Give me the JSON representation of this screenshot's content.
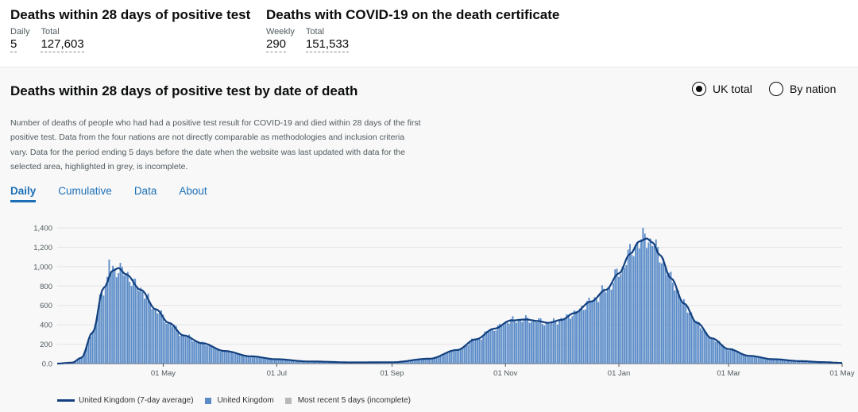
{
  "headline": {
    "left": {
      "title": "Deaths within 28 days of positive test",
      "metrics": [
        {
          "label": "Daily",
          "value": "5"
        },
        {
          "label": "Total",
          "value": "127,603"
        }
      ]
    },
    "right": {
      "title": "Deaths with COVID-19 on the death certificate",
      "metrics": [
        {
          "label": "Weekly",
          "value": "290"
        },
        {
          "label": "Total",
          "value": "151,533"
        }
      ]
    }
  },
  "card": {
    "title": "Deaths within 28 days of positive test by date of death",
    "radios": [
      {
        "label": "UK total",
        "selected": true
      },
      {
        "label": "By nation",
        "selected": false
      }
    ],
    "description": "Number of deaths of people who had had a positive test result for COVID-19 and died within 28 days of the first positive test. Data from the four nations are not directly comparable as methodologies and inclusion criteria vary. Data for the period ending 5 days before the date when the website was last updated with data for the selected area, highlighted in grey, is incomplete.",
    "tabs": [
      {
        "label": "Daily",
        "active": true
      },
      {
        "label": "Cumulative",
        "active": false
      },
      {
        "label": "Data",
        "active": false
      },
      {
        "label": "About",
        "active": false
      }
    ]
  },
  "legend": {
    "line": "United Kingdom (7-day average)",
    "bars": "United Kingdom",
    "incomplete": "Most recent 5 days (incomplete)"
  },
  "colors": {
    "bar": "#5b8cc8",
    "line": "#12407f",
    "incomplete": "#b8b8b8",
    "accent": "#1d70b8"
  },
  "chart_data": {
    "type": "bar",
    "title": "Deaths within 28 days of positive test by date of death",
    "x_tick_labels": [
      "01 May",
      "01 Jul",
      "01 Sep",
      "01 Nov",
      "01 Jan",
      "01 Mar",
      "01 May"
    ],
    "x_tick_days": [
      57,
      118,
      180,
      241,
      302,
      361,
      422
    ],
    "x_range_days": [
      0,
      422
    ],
    "y_ticks": [
      0,
      200,
      400,
      600,
      800,
      1000,
      1200,
      1400
    ],
    "y_tick_labels": [
      "0.0",
      "200",
      "400",
      "600",
      "800",
      "1,000",
      "1,200",
      "1,400"
    ],
    "ylim": [
      0,
      1450
    ],
    "grid": true,
    "series": [
      {
        "name": "United Kingdom",
        "kind": "bar"
      },
      {
        "name": "United Kingdom (7-day average)",
        "kind": "line"
      }
    ],
    "key_points": [
      {
        "day": 0,
        "value": 0
      },
      {
        "day": 8,
        "value": 10
      },
      {
        "day": 13,
        "value": 60
      },
      {
        "day": 19,
        "value": 320
      },
      {
        "day": 25,
        "value": 780
      },
      {
        "day": 30,
        "value": 960
      },
      {
        "day": 33,
        "value": 985
      },
      {
        "day": 37,
        "value": 920
      },
      {
        "day": 45,
        "value": 760
      },
      {
        "day": 53,
        "value": 560
      },
      {
        "day": 60,
        "value": 420
      },
      {
        "day": 68,
        "value": 290
      },
      {
        "day": 78,
        "value": 210
      },
      {
        "day": 90,
        "value": 130
      },
      {
        "day": 104,
        "value": 75
      },
      {
        "day": 118,
        "value": 45
      },
      {
        "day": 135,
        "value": 22
      },
      {
        "day": 160,
        "value": 12
      },
      {
        "day": 180,
        "value": 14
      },
      {
        "day": 200,
        "value": 50
      },
      {
        "day": 215,
        "value": 140
      },
      {
        "day": 225,
        "value": 250
      },
      {
        "day": 235,
        "value": 360
      },
      {
        "day": 244,
        "value": 445
      },
      {
        "day": 252,
        "value": 455
      },
      {
        "day": 258,
        "value": 440
      },
      {
        "day": 264,
        "value": 420
      },
      {
        "day": 271,
        "value": 450
      },
      {
        "day": 278,
        "value": 520
      },
      {
        "day": 287,
        "value": 640
      },
      {
        "day": 295,
        "value": 760
      },
      {
        "day": 302,
        "value": 930
      },
      {
        "day": 308,
        "value": 1130
      },
      {
        "day": 313,
        "value": 1260
      },
      {
        "day": 317,
        "value": 1290
      },
      {
        "day": 320,
        "value": 1250
      },
      {
        "day": 324,
        "value": 1120
      },
      {
        "day": 330,
        "value": 880
      },
      {
        "day": 337,
        "value": 620
      },
      {
        "day": 344,
        "value": 420
      },
      {
        "day": 352,
        "value": 260
      },
      {
        "day": 361,
        "value": 150
      },
      {
        "day": 372,
        "value": 80
      },
      {
        "day": 385,
        "value": 45
      },
      {
        "day": 400,
        "value": 25
      },
      {
        "day": 412,
        "value": 15
      },
      {
        "day": 422,
        "value": 7
      }
    ],
    "incomplete_from_day": 418
  }
}
